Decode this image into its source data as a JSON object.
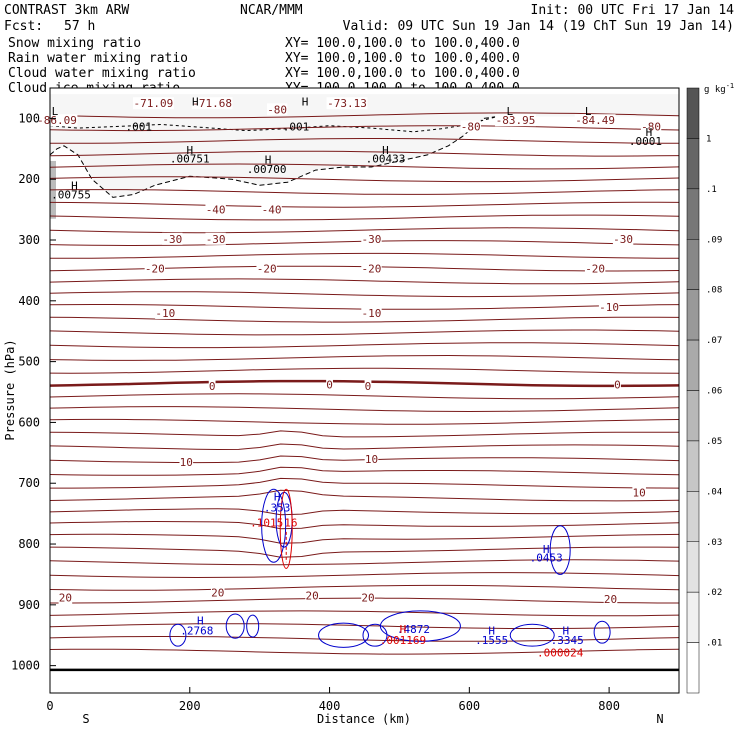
{
  "header": {
    "model": "CONTRAST  3km ARW",
    "center": "NCAR/MMM",
    "init": "Init: 00 UTC Fri 17 Jan 14",
    "fcst_label": "Fcst:",
    "fcst_value": "57 h",
    "valid": "Valid: 09 UTC Sun 19 Jan 14 (19 ChT Sun 19 Jan 14)"
  },
  "fields": [
    {
      "name": "Snow mixing ratio",
      "color": "#000000",
      "xy": "XY= 100.0,100.0 to 100.0,400.0"
    },
    {
      "name": "Rain water mixing ratio",
      "color": "#dd0000",
      "xy": "XY= 100.0,100.0 to 100.0,400.0"
    },
    {
      "name": "Cloud water mixing ratio",
      "color": "#0000cc",
      "xy": "XY= 100.0,100.0 to 100.0,400.0"
    },
    {
      "name": "Cloud ice mixing ratio",
      "color": "#000000",
      "xy": "XY= 100.0,100.0 to 100.0,400.0"
    }
  ],
  "chart_data": {
    "type": "cross-section",
    "xlabel": "Distance (km)",
    "ylabel": "Pressure (hPa)",
    "xlim": [
      0,
      900
    ],
    "ylim": [
      50,
      1045
    ],
    "x_ticks": [
      0,
      200,
      400,
      600,
      800
    ],
    "y_ticks": [
      100,
      200,
      300,
      400,
      500,
      600,
      700,
      800,
      900,
      1000
    ],
    "x_end_labels": {
      "left": "S",
      "right": "N"
    },
    "colorbar": {
      "unit": "g kg",
      "unit_exp": "-1",
      "ticks": [
        ".01",
        ".02",
        ".03",
        ".04",
        ".05",
        ".06",
        ".07",
        ".08",
        ".09",
        ".1",
        "1"
      ],
      "colors": [
        "#ffffff",
        "#f0f0f0",
        "#e2e2e2",
        "#d4d4d4",
        "#c6c6c6",
        "#b8b8b8",
        "#aaaaaa",
        "#999999",
        "#888888",
        "#777777",
        "#666666",
        "#555555"
      ]
    },
    "temperature_contours": {
      "color": "#7a1a1a",
      "labels": [
        {
          "text": "-71.09",
          "x": 148,
          "p": 75
        },
        {
          "text": "-71.68",
          "x": 232,
          "p": 75
        },
        {
          "text": "-73.13",
          "x": 425,
          "p": 75
        },
        {
          "text": "-80",
          "x": 325,
          "p": 85
        },
        {
          "text": "-86.09",
          "x": 10,
          "p": 103
        },
        {
          "text": "-80",
          "x": 602,
          "p": 113
        },
        {
          "text": "-83.95",
          "x": 666,
          "p": 103
        },
        {
          "text": "-84.49",
          "x": 780,
          "p": 103
        },
        {
          "text": "-80",
          "x": 860,
          "p": 113
        },
        {
          "text": "-40",
          "x": 237,
          "p": 250
        },
        {
          "text": "-40",
          "x": 317,
          "p": 250
        },
        {
          "text": "-30",
          "x": 175,
          "p": 298
        },
        {
          "text": "-30",
          "x": 237,
          "p": 298
        },
        {
          "text": "-30",
          "x": 460,
          "p": 298
        },
        {
          "text": "-30",
          "x": 820,
          "p": 298
        },
        {
          "text": "-20",
          "x": 150,
          "p": 347
        },
        {
          "text": "-20",
          "x": 310,
          "p": 347
        },
        {
          "text": "-20",
          "x": 460,
          "p": 347
        },
        {
          "text": "-20",
          "x": 780,
          "p": 347
        },
        {
          "text": "-10",
          "x": 165,
          "p": 420
        },
        {
          "text": "-10",
          "x": 460,
          "p": 420
        },
        {
          "text": "-10",
          "x": 800,
          "p": 410
        },
        {
          "text": "0",
          "x": 232,
          "p": 540
        },
        {
          "text": "0",
          "x": 400,
          "p": 538
        },
        {
          "text": "0",
          "x": 455,
          "p": 540
        },
        {
          "text": "0",
          "x": 812,
          "p": 538
        },
        {
          "text": "10",
          "x": 195,
          "p": 665
        },
        {
          "text": "10",
          "x": 460,
          "p": 660
        },
        {
          "text": "10",
          "x": 843,
          "p": 715
        },
        {
          "text": "20",
          "x": 22,
          "p": 888
        },
        {
          "text": "20",
          "x": 240,
          "p": 880
        },
        {
          "text": "20",
          "x": 375,
          "p": 885
        },
        {
          "text": "20",
          "x": 455,
          "p": 888
        },
        {
          "text": "20",
          "x": 802,
          "p": 890
        }
      ]
    },
    "snow_contours": {
      "color": "#000000",
      "labels": [
        {
          "text": ".001",
          "x": 127,
          "p": 113
        },
        {
          "text": ".001",
          "x": 352,
          "p": 113
        },
        {
          "text": ".00751",
          "x": 200,
          "p": 166
        },
        {
          "text": ".00700",
          "x": 310,
          "p": 183
        },
        {
          "text": ".00433",
          "x": 480,
          "p": 166
        },
        {
          "text": ".00755",
          "x": 30,
          "p": 225
        },
        {
          "text": ".0001",
          "x": 852,
          "p": 137
        }
      ]
    },
    "extrema_markers": [
      {
        "text": "H",
        "color": "#000000",
        "x": 208,
        "p": 72
      },
      {
        "text": "H",
        "color": "#000000",
        "x": 365,
        "p": 72
      },
      {
        "text": "L",
        "color": "#000000",
        "x": 7,
        "p": 88
      },
      {
        "text": "L",
        "color": "#000000",
        "x": 658,
        "p": 88
      },
      {
        "text": "L",
        "color": "#000000",
        "x": 770,
        "p": 88
      },
      {
        "text": "H",
        "color": "#000000",
        "x": 857,
        "p": 122
      },
      {
        "text": "H",
        "color": "#000000",
        "x": 200,
        "p": 152
      },
      {
        "text": "H",
        "color": "#000000",
        "x": 312,
        "p": 168
      },
      {
        "text": "H",
        "color": "#000000",
        "x": 480,
        "p": 152
      },
      {
        "text": "H",
        "color": "#000000",
        "x": 35,
        "p": 210
      },
      {
        "text": "H",
        "color": "#0000cc",
        "x": 325,
        "p": 722
      },
      {
        "text": "H",
        "color": "#0000cc",
        "x": 710,
        "p": 808
      },
      {
        "text": "H",
        "color": "#0000cc",
        "x": 215,
        "p": 926
      },
      {
        "text": "H",
        "color": "#dd0000",
        "x": 505,
        "p": 940
      },
      {
        "text": "H",
        "color": "#0000cc",
        "x": 632,
        "p": 942
      },
      {
        "text": "H",
        "color": "#0000cc",
        "x": 738,
        "p": 942
      }
    ],
    "cloud_water": {
      "color": "#0000cc",
      "labels": [
        {
          "text": ".353",
          "x": 325,
          "p": 740
        },
        {
          "text": ".0453",
          "x": 710,
          "p": 822
        },
        {
          "text": ".2768",
          "x": 210,
          "p": 942
        },
        {
          "text": ".4872",
          "x": 520,
          "p": 940
        },
        {
          "text": ".1555",
          "x": 632,
          "p": 958
        },
        {
          "text": ".3345",
          "x": 740,
          "p": 958
        }
      ]
    },
    "rain_water": {
      "color": "#dd0000",
      "labels": [
        {
          "text": ".1015",
          "x": 310,
          "p": 765
        },
        {
          "text": ".16",
          "x": 340,
          "p": 765
        },
        {
          "text": ".001169",
          "x": 505,
          "p": 958
        },
        {
          "text": ".000024",
          "x": 730,
          "p": 978
        }
      ]
    }
  }
}
